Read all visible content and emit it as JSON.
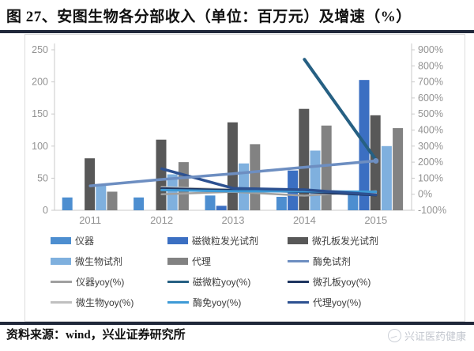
{
  "title": "图 27、安图生物各分部收入（单位：百万元）及增速（%）",
  "source_note": "资料来源：wind，兴业证券研究所",
  "watermark": "兴证医药健康",
  "colors": {
    "rule": "#20283a",
    "axis_label": "#929292",
    "axis_line": "#c9c9c9",
    "legend_text": "#3d3d3d"
  },
  "chart_data": {
    "type": "bar",
    "subtype": "grouped bars with yoy growth lines, dual axis",
    "categories": [
      "2011",
      "2012",
      "2013",
      "2014",
      "2015"
    ],
    "left_axis": {
      "min": 0,
      "max": 250,
      "ticks": [
        0,
        50,
        100,
        150,
        200,
        250
      ]
    },
    "right_axis": {
      "min": -100,
      "max": 900,
      "ticks": [
        -100,
        0,
        100,
        200,
        300,
        400,
        500,
        600,
        700,
        800,
        900
      ],
      "suffix": "%"
    },
    "grid": "off",
    "legend_position": "bottom",
    "bar_series": [
      {
        "key": "instrument",
        "name": "仪器",
        "color": "#4d8ed0",
        "values": [
          20,
          20,
          23,
          21,
          25
        ]
      },
      {
        "key": "chemiluminescence",
        "name": "磁微粒发光试剂",
        "color": "#3b6fc2",
        "values": [
          0,
          0,
          7,
          62,
          203
        ]
      },
      {
        "key": "microplate",
        "name": "微孔板发光试剂",
        "color": "#585858",
        "values": [
          81,
          110,
          137,
          158,
          148
        ]
      },
      {
        "key": "microbiology",
        "name": "微生物试剂",
        "color": "#7fb0de",
        "values": [
          39,
          56,
          73,
          93,
          100
        ]
      },
      {
        "key": "agency",
        "name": "代理",
        "color": "#828282",
        "values": [
          29,
          75,
          103,
          132,
          128
        ]
      }
    ],
    "lines": [
      {
        "key": "instrument-yoy",
        "name": "仪器yoy(%)",
        "axis": "right",
        "color": "#a0a0a0",
        "width": 2.5,
        "marker": false,
        "values": [
          null,
          0,
          15,
          -9,
          19
        ]
      },
      {
        "key": "microbiology-yoy",
        "name": "微生物yoy(%)",
        "axis": "right",
        "color": "#c0c0c0",
        "width": 2.5,
        "marker": false,
        "values": [
          null,
          44,
          30,
          27,
          8
        ]
      },
      {
        "key": "microplate-yoy",
        "name": "微孔板yoy(%)",
        "axis": "right",
        "color": "#1e3560",
        "width": 3,
        "marker": false,
        "values": [
          null,
          36,
          25,
          15,
          -6
        ]
      },
      {
        "key": "elisa-yoy",
        "name": "酶免yoy(%)",
        "axis": "right",
        "color": "#3e9ad6",
        "width": 3,
        "marker": false,
        "values": [
          null,
          26,
          19,
          18,
          15
        ]
      },
      {
        "key": "agency-yoy",
        "name": "代理yoy(%)",
        "axis": "right",
        "color": "#2d5191",
        "width": 3.5,
        "marker": false,
        "values": [
          null,
          159,
          37,
          28,
          -3
        ]
      },
      {
        "key": "chemiluminescence-yoy",
        "name": "磁微粒yoy(%)",
        "axis": "right",
        "color": "#266083",
        "width": 4,
        "marker": false,
        "values": [
          null,
          null,
          null,
          840,
          215
        ]
      },
      {
        "key": "elisa-revenue",
        "name": "酶免试剂",
        "axis": "left",
        "color": "#6d8ec1",
        "width": 3.5,
        "marker": true,
        "values": [
          38,
          48,
          57,
          67,
          77
        ]
      }
    ],
    "legend": [
      {
        "label": "仪器",
        "type": "bar",
        "color": "#4d8ed0"
      },
      {
        "label": "磁微粒发光试剂",
        "type": "bar",
        "color": "#3b6fc2"
      },
      {
        "label": "微孔板发光试剂",
        "type": "bar",
        "color": "#585858"
      },
      {
        "label": "微生物试剂",
        "type": "bar",
        "color": "#7fb0de"
      },
      {
        "label": "代理",
        "type": "bar",
        "color": "#828282"
      },
      {
        "label": "酶免试剂",
        "type": "line",
        "color": "#6d8ec1"
      },
      {
        "label": "仪器yoy(%)",
        "type": "line",
        "color": "#a0a0a0"
      },
      {
        "label": "磁微粒yoy(%)",
        "type": "line",
        "color": "#266083"
      },
      {
        "label": "微孔板yoy(%)",
        "type": "line",
        "color": "#1e3560"
      },
      {
        "label": "微生物yoy(%)",
        "type": "line",
        "color": "#c0c0c0"
      },
      {
        "label": "酶免yoy(%)",
        "type": "line",
        "color": "#3e9ad6"
      },
      {
        "label": "代理yoy(%)",
        "type": "line",
        "color": "#2d5191"
      }
    ]
  }
}
